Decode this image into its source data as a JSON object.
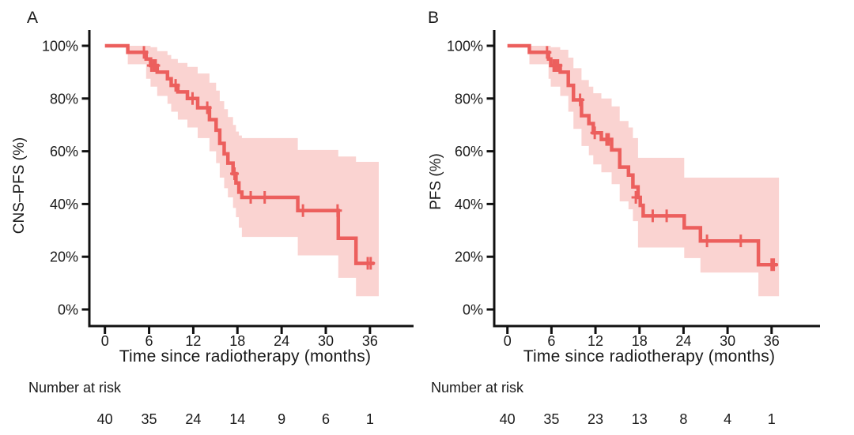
{
  "figure": {
    "background": "#ffffff",
    "curve_color": "#ec5f5d",
    "band_color": "#fad3d1",
    "axis_color": "#111111",
    "text_color": "#1a1a1a"
  },
  "chart_data": [
    {
      "panel": "A",
      "type": "line",
      "subtype": "kaplan_meier_step_with_ci",
      "ylabel": "CNS–PFS (%)",
      "xlabel": "Time since radiotherapy (months)",
      "xlim": [
        0,
        38
      ],
      "ylim": [
        0,
        100
      ],
      "grid": false,
      "legend": "none",
      "x_ticks": [
        0,
        6,
        12,
        18,
        24,
        30,
        36
      ],
      "y_ticks": [
        {
          "pct": 100,
          "label": "100%"
        },
        {
          "pct": 80,
          "label": "80%"
        },
        {
          "pct": 60,
          "label": "60%"
        },
        {
          "pct": 40,
          "label": "40%"
        },
        {
          "pct": 20,
          "label": "20%"
        },
        {
          "pct": 0,
          "label": "0%"
        }
      ],
      "survival_percent_steps": [
        [
          0,
          100
        ],
        [
          3.1,
          97.5
        ],
        [
          5.6,
          95
        ],
        [
          6.2,
          92.5
        ],
        [
          7.1,
          90
        ],
        [
          8.5,
          87.5
        ],
        [
          9.0,
          85
        ],
        [
          9.9,
          82.5
        ],
        [
          11.2,
          80
        ],
        [
          12.6,
          76.5
        ],
        [
          14.2,
          72
        ],
        [
          15.1,
          68
        ],
        [
          15.6,
          63
        ],
        [
          16.2,
          59
        ],
        [
          16.7,
          55.5
        ],
        [
          17.4,
          51.5
        ],
        [
          17.8,
          48
        ],
        [
          18.2,
          44.5
        ],
        [
          18.6,
          42.5
        ],
        [
          26.2,
          37.5
        ],
        [
          31.7,
          27
        ],
        [
          34.1,
          17.5
        ]
      ],
      "curve_end_time": 36.6,
      "censor_marks": [
        [
          5.3,
          97.5
        ],
        [
          6.3,
          92.5
        ],
        [
          6.6,
          92.5
        ],
        [
          6.9,
          92.5
        ],
        [
          9.6,
          85
        ],
        [
          11.9,
          80
        ],
        [
          13.9,
          76.5
        ],
        [
          17.6,
          51.5
        ],
        [
          19.8,
          42.5
        ],
        [
          21.7,
          42.5
        ],
        [
          26.9,
          37.5
        ],
        [
          31.6,
          37.5
        ],
        [
          35.7,
          17.5
        ],
        [
          36.1,
          17.5
        ]
      ],
      "ci_upper_steps": [
        [
          3.1,
          100
        ],
        [
          5.6,
          100
        ],
        [
          6.2,
          99.5
        ],
        [
          7.1,
          98
        ],
        [
          8.5,
          96.5
        ],
        [
          9.0,
          95
        ],
        [
          9.9,
          93.5
        ],
        [
          11.2,
          92
        ],
        [
          12.6,
          89.5
        ],
        [
          14.2,
          86
        ],
        [
          15.1,
          83
        ],
        [
          15.6,
          79
        ],
        [
          16.2,
          76
        ],
        [
          16.7,
          73
        ],
        [
          17.4,
          70
        ],
        [
          17.8,
          67.5
        ],
        [
          18.2,
          66
        ],
        [
          18.6,
          65
        ],
        [
          26.2,
          60.5
        ],
        [
          31.7,
          58
        ],
        [
          34.1,
          56
        ]
      ],
      "ci_lower_steps": [
        [
          3.1,
          93
        ],
        [
          5.6,
          87.5
        ],
        [
          6.2,
          84.5
        ],
        [
          7.1,
          81
        ],
        [
          8.5,
          78
        ],
        [
          9.0,
          75
        ],
        [
          9.9,
          72
        ],
        [
          11.2,
          69
        ],
        [
          12.6,
          65
        ],
        [
          14.2,
          60
        ],
        [
          15.1,
          55.5
        ],
        [
          15.6,
          50
        ],
        [
          16.2,
          46
        ],
        [
          16.7,
          42.5
        ],
        [
          17.4,
          38.5
        ],
        [
          17.8,
          35
        ],
        [
          18.2,
          31
        ],
        [
          18.6,
          27.5
        ],
        [
          26.2,
          20.5
        ],
        [
          31.7,
          12
        ],
        [
          34.1,
          5
        ]
      ],
      "band_end_time": 37.2,
      "risk_table": {
        "label": "Number at risk",
        "times": [
          0,
          6,
          12,
          18,
          24,
          30,
          36
        ],
        "counts": [
          "40",
          "35",
          "24",
          "14",
          "9",
          "6",
          "1"
        ]
      }
    },
    {
      "panel": "B",
      "type": "line",
      "subtype": "kaplan_meier_step_with_ci",
      "ylabel": "PFS (%)",
      "xlabel": "Time since radiotherapy (months)",
      "xlim": [
        0,
        38
      ],
      "ylim": [
        0,
        100
      ],
      "grid": false,
      "legend": "none",
      "x_ticks": [
        0,
        6,
        12,
        18,
        24,
        30,
        36
      ],
      "y_ticks": [
        {
          "pct": 100,
          "label": "100%"
        },
        {
          "pct": 80,
          "label": "80%"
        },
        {
          "pct": 60,
          "label": "60%"
        },
        {
          "pct": 40,
          "label": "40%"
        },
        {
          "pct": 20,
          "label": "20%"
        },
        {
          "pct": 0,
          "label": "0%"
        }
      ],
      "survival_percent_steps": [
        [
          0,
          100
        ],
        [
          3.0,
          97.5
        ],
        [
          5.6,
          95
        ],
        [
          5.9,
          92.5
        ],
        [
          7.2,
          90
        ],
        [
          8.3,
          85
        ],
        [
          9.0,
          79.5
        ],
        [
          10.1,
          73.5
        ],
        [
          11.1,
          70.5
        ],
        [
          11.7,
          67
        ],
        [
          12.8,
          64.5
        ],
        [
          14.2,
          60.5
        ],
        [
          15.3,
          54
        ],
        [
          16.5,
          51
        ],
        [
          17.1,
          46.5
        ],
        [
          17.8,
          42.5
        ],
        [
          18.1,
          39.5
        ],
        [
          18.5,
          35.5
        ],
        [
          24.1,
          31
        ],
        [
          26.3,
          26
        ],
        [
          34.2,
          17
        ]
      ],
      "curve_end_time": 36.8,
      "censor_marks": [
        [
          5.4,
          97.5
        ],
        [
          6.3,
          92.5
        ],
        [
          6.6,
          92.5
        ],
        [
          6.9,
          92.5
        ],
        [
          9.9,
          79.5
        ],
        [
          11.9,
          67
        ],
        [
          13.5,
          64.5
        ],
        [
          13.8,
          64.5
        ],
        [
          17.5,
          42.5
        ],
        [
          19.8,
          35.5
        ],
        [
          21.7,
          35.5
        ],
        [
          27.2,
          26
        ],
        [
          31.8,
          26
        ],
        [
          36.0,
          17
        ],
        [
          36.3,
          17
        ]
      ],
      "ci_upper_steps": [
        [
          3.0,
          100
        ],
        [
          5.6,
          100
        ],
        [
          5.9,
          99.5
        ],
        [
          7.2,
          98.5
        ],
        [
          8.3,
          95.5
        ],
        [
          9.0,
          91.5
        ],
        [
          10.1,
          87
        ],
        [
          11.1,
          84.5
        ],
        [
          11.7,
          82
        ],
        [
          12.8,
          80
        ],
        [
          14.2,
          77
        ],
        [
          15.3,
          71.5
        ],
        [
          16.5,
          69
        ],
        [
          17.1,
          65
        ],
        [
          17.8,
          57.5
        ],
        [
          24.1,
          50
        ],
        [
          26.3,
          50
        ],
        [
          34.2,
          50
        ]
      ],
      "ci_lower_steps": [
        [
          3.0,
          93
        ],
        [
          5.6,
          87.5
        ],
        [
          5.9,
          84.5
        ],
        [
          7.2,
          81
        ],
        [
          8.3,
          75
        ],
        [
          9.0,
          68.5
        ],
        [
          10.1,
          62
        ],
        [
          11.1,
          58.5
        ],
        [
          11.7,
          55
        ],
        [
          12.8,
          52
        ],
        [
          14.2,
          47.5
        ],
        [
          15.3,
          41
        ],
        [
          16.5,
          38
        ],
        [
          17.1,
          33.5
        ],
        [
          17.8,
          23.5
        ],
        [
          24.1,
          19.5
        ],
        [
          26.3,
          14
        ],
        [
          34.2,
          5
        ]
      ],
      "band_end_time": 37.0,
      "risk_table": {
        "label": "Number at risk",
        "times": [
          0,
          6,
          12,
          18,
          24,
          30,
          36
        ],
        "counts": [
          "40",
          "35",
          "23",
          "13",
          "8",
          "4",
          "1"
        ]
      }
    }
  ]
}
